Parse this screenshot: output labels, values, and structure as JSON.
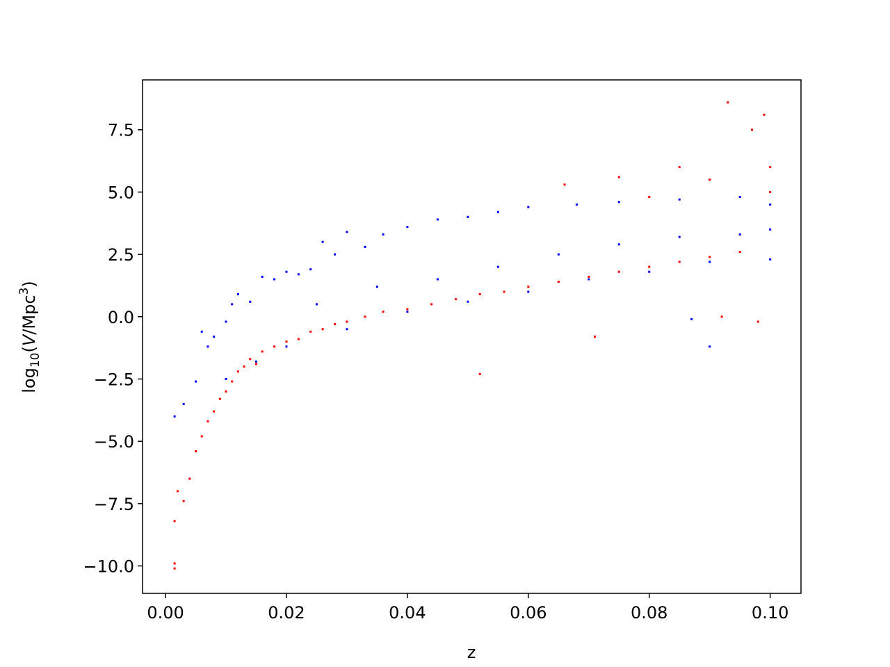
{
  "chart_data": {
    "type": "scatter",
    "xlabel": "z",
    "ylabel_parts": [
      "log",
      "10",
      "(",
      "V",
      "/Mpc",
      "3",
      ")"
    ],
    "xlim": [
      -0.0038,
      0.1051
    ],
    "ylim": [
      -11.1,
      9.5
    ],
    "xticks": [
      {
        "value": 0,
        "label": "0.00"
      },
      {
        "value": 0.02,
        "label": "0.02"
      },
      {
        "value": 0.04,
        "label": "0.04"
      },
      {
        "value": 0.06,
        "label": "0.06"
      },
      {
        "value": 0.08,
        "label": "0.08"
      },
      {
        "value": 0.1,
        "label": "0.10"
      }
    ],
    "yticks": [
      {
        "value": -10,
        "label": "−10.0"
      },
      {
        "value": -7.5,
        "label": "−7.5"
      },
      {
        "value": -5,
        "label": "−5.0"
      },
      {
        "value": -2.5,
        "label": "−2.5"
      },
      {
        "value": 0,
        "label": "0.0"
      },
      2.5,
      {
        "value": 5,
        "label": "5.0"
      },
      7.5
    ],
    "series": [
      {
        "color": "#ff0000",
        "x": [
          0.0015,
          0.0015,
          0.0015,
          0.002,
          0.003,
          0.004,
          0.005,
          0.006,
          0.007,
          0.008,
          0.009,
          0.01,
          0.011,
          0.012,
          0.013,
          0.014,
          0.015,
          0.016,
          0.018,
          0.02,
          0.022,
          0.024,
          0.026,
          0.028,
          0.03,
          0.033,
          0.036,
          0.04,
          0.044,
          0.048,
          0.052,
          0.052,
          0.056,
          0.06,
          0.065,
          0.07,
          0.071,
          0.075,
          0.08,
          0.085,
          0.09,
          0.095,
          0.066,
          0.075,
          0.085,
          0.093,
          0.097,
          0.099,
          0.1,
          0.1,
          0.098,
          0.092,
          0.08,
          0.09
        ],
        "values": [
          -10.1,
          -9.9,
          -8.2,
          -7.0,
          -7.4,
          -6.5,
          -5.4,
          -4.8,
          -4.2,
          -3.8,
          -3.3,
          -3.0,
          -2.6,
          -2.2,
          -2.0,
          -1.7,
          -1.9,
          -1.4,
          -1.2,
          -1.0,
          -0.9,
          -0.6,
          -0.5,
          -0.3,
          -0.2,
          0.0,
          0.2,
          0.3,
          0.5,
          0.7,
          -2.3,
          0.9,
          1.0,
          1.2,
          1.4,
          1.6,
          -0.8,
          1.8,
          2.0,
          2.2,
          2.4,
          2.6,
          5.3,
          5.6,
          6.0,
          8.6,
          7.5,
          8.1,
          6.0,
          5.0,
          -0.2,
          0.0,
          4.8,
          5.5
        ]
      },
      {
        "color": "#0000ff",
        "x": [
          0.0015,
          0.003,
          0.005,
          0.006,
          0.007,
          0.008,
          0.01,
          0.011,
          0.012,
          0.014,
          0.016,
          0.018,
          0.02,
          0.022,
          0.024,
          0.026,
          0.028,
          0.03,
          0.033,
          0.036,
          0.04,
          0.045,
          0.05,
          0.055,
          0.06,
          0.068,
          0.075,
          0.085,
          0.095,
          0.1,
          0.1,
          0.1,
          0.09,
          0.08,
          0.07,
          0.06,
          0.05,
          0.04,
          0.03,
          0.02,
          0.015,
          0.01,
          0.045,
          0.055,
          0.065,
          0.075,
          0.085,
          0.095,
          0.035,
          0.025,
          0.09,
          0.087
        ],
        "values": [
          -4.0,
          -3.5,
          -2.6,
          -0.6,
          -1.2,
          -0.8,
          -0.2,
          0.5,
          0.9,
          0.6,
          1.6,
          1.5,
          1.8,
          1.7,
          1.9,
          3.0,
          2.5,
          3.4,
          2.8,
          3.3,
          3.6,
          3.9,
          4.0,
          4.2,
          4.4,
          4.5,
          4.6,
          4.7,
          4.8,
          4.5,
          3.5,
          2.3,
          2.2,
          1.8,
          1.5,
          1.0,
          0.6,
          0.2,
          -0.5,
          -1.2,
          -1.8,
          -2.5,
          1.5,
          2.0,
          2.5,
          2.9,
          3.2,
          3.3,
          1.2,
          0.5,
          -1.2,
          -0.1
        ]
      }
    ]
  }
}
